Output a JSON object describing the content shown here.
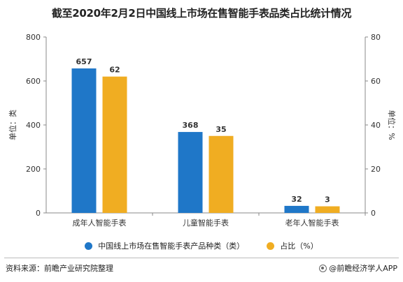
{
  "title": "截至2020年2月2日中国线上市场在售智能手表品类占比统计情况",
  "colors": {
    "series1": "#1f77c8",
    "series2": "#f0ad22",
    "axis": "#888888"
  },
  "legend": {
    "item1": "中国线上市场在售智能手表产品种类（类）",
    "item2": "占比（%）"
  },
  "footer": {
    "source": "资料来源：前瞻产业研究院整理",
    "brand": "@前瞻经济学人APP"
  },
  "chart_data": {
    "type": "bar",
    "categories": [
      "成年人智能手表",
      "儿童智能手表",
      "老年人智能手表"
    ],
    "series": [
      {
        "name": "中国线上市场在售智能手表产品种类（类）",
        "values": [
          657,
          368,
          32
        ],
        "axis": "left"
      },
      {
        "name": "占比（%）",
        "values": [
          62,
          35,
          3
        ],
        "axis": "right"
      }
    ],
    "ylabel": "单位：类",
    "y2label": "单位：%",
    "ylim": [
      0,
      800
    ],
    "y2lim": [
      0,
      80
    ],
    "yticks": [
      0,
      200,
      400,
      600,
      800
    ],
    "y2ticks": [
      0,
      20,
      40,
      60,
      80
    ],
    "legend_position": "bottom",
    "grid": false
  }
}
